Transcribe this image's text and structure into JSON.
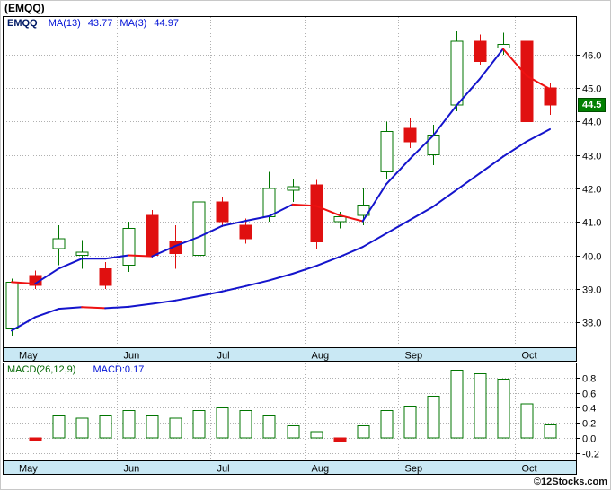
{
  "title": "(EMQQ)",
  "watermark": "©12Stocks.com",
  "colors": {
    "up": "#007500",
    "down": "#e01010",
    "ma_up": "#1414cc",
    "ma_down": "#ee1111",
    "band": "#c9e8f4",
    "grid": "#b0b0b0",
    "price_tag_bg": "#008000",
    "price_tag_fg": "#ffffff",
    "legend_symbol": "#001a66",
    "legend_ma": "#0011d6",
    "legend_macd_left": "#006600",
    "legend_macd_right": "#0011d6"
  },
  "chart_data": [
    {
      "type": "candlestick",
      "panel": "price",
      "title": "EMQQ weekly price with moving averages",
      "legend": {
        "symbol": "EMQQ",
        "ma13_label": "MA(13)",
        "ma13_value": "43.77",
        "ma3_label": "MA(3)",
        "ma3_value": "44.97"
      },
      "last_price_label": "44.5",
      "y_ticks": [
        "46.0",
        "45.0",
        "44.0",
        "43.0",
        "42.0",
        "41.0",
        "40.0",
        "39.0",
        "38.0"
      ],
      "ylim": [
        37.25,
        47.15
      ],
      "months": [
        {
          "label": "May",
          "start": 0
        },
        {
          "label": "Jun",
          "start": 5
        },
        {
          "label": "Jul",
          "start": 9
        },
        {
          "label": "Aug",
          "start": 13
        },
        {
          "label": "Sep",
          "start": 17
        },
        {
          "label": "Oct",
          "start": 22
        }
      ],
      "candles_ohlc": [
        [
          37.8,
          39.3,
          37.6,
          39.2
        ],
        [
          39.4,
          39.55,
          39.0,
          39.1
        ],
        [
          40.2,
          40.9,
          39.7,
          40.5
        ],
        [
          40.0,
          40.45,
          39.6,
          40.1
        ],
        [
          39.6,
          39.8,
          39.0,
          39.1
        ],
        [
          39.7,
          41.0,
          39.5,
          40.8
        ],
        [
          41.2,
          41.35,
          39.9,
          40.0
        ],
        [
          40.4,
          40.9,
          39.6,
          40.05
        ],
        [
          40.0,
          41.8,
          39.9,
          41.6
        ],
        [
          41.6,
          41.75,
          40.85,
          41.0
        ],
        [
          40.9,
          41.1,
          40.35,
          40.5
        ],
        [
          41.15,
          42.5,
          41.0,
          42.0
        ],
        [
          41.95,
          42.3,
          41.6,
          42.05
        ],
        [
          42.1,
          42.25,
          40.2,
          40.4
        ],
        [
          41.0,
          41.3,
          40.8,
          41.15
        ],
        [
          41.2,
          42.0,
          40.9,
          41.5
        ],
        [
          42.5,
          44.0,
          42.3,
          43.7
        ],
        [
          43.8,
          44.1,
          43.2,
          43.4
        ],
        [
          43.0,
          43.9,
          42.7,
          43.6
        ],
        [
          44.5,
          46.7,
          44.3,
          46.4
        ],
        [
          46.4,
          46.6,
          45.7,
          45.8
        ],
        [
          46.2,
          46.65,
          46.0,
          46.3
        ],
        [
          46.4,
          46.55,
          43.9,
          44.0
        ],
        [
          45.0,
          45.15,
          44.2,
          44.5
        ]
      ],
      "ma3": [
        39.2,
        39.15,
        39.6,
        39.9,
        39.9,
        40.0,
        39.97,
        40.28,
        40.55,
        40.88,
        41.03,
        41.17,
        41.52,
        41.48,
        41.2,
        41.02,
        42.12,
        42.87,
        43.57,
        44.47,
        45.27,
        46.17,
        45.37,
        44.97
      ],
      "ma13": [
        37.75,
        38.15,
        38.4,
        38.45,
        38.42,
        38.46,
        38.55,
        38.65,
        38.78,
        38.92,
        39.08,
        39.25,
        39.45,
        39.68,
        39.95,
        40.25,
        40.65,
        41.05,
        41.45,
        41.95,
        42.45,
        42.95,
        43.4,
        43.77
      ]
    },
    {
      "type": "bar",
      "panel": "macd",
      "title": "MACD histogram",
      "legend_left": "MACD(26,12,9)",
      "legend_right": "MACD:0.17",
      "y_ticks": [
        "0.8",
        "0.6",
        "0.4",
        "0.2",
        "0.0",
        "-0.2"
      ],
      "ylim": [
        -0.3,
        1.0
      ],
      "values": [
        null,
        -0.03,
        0.3,
        0.26,
        0.3,
        0.36,
        0.3,
        0.26,
        0.36,
        0.4,
        0.36,
        0.3,
        0.16,
        0.08,
        -0.05,
        0.16,
        0.36,
        0.42,
        0.55,
        0.9,
        0.85,
        0.78,
        0.45,
        0.17
      ]
    }
  ]
}
